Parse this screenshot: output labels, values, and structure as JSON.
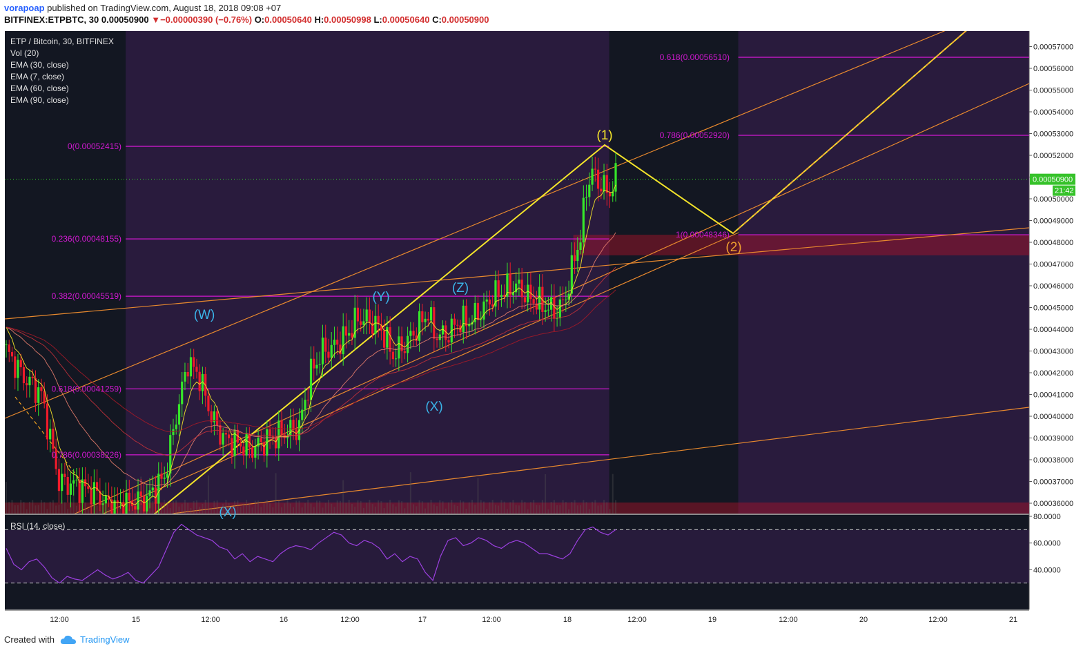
{
  "header": {
    "user": "vorapoap",
    "published": "published on TradingView.com, August 18, 2018 09:08 +07",
    "symbol": "BITFINEX:ETPBTC, 30",
    "last": "0.00050900",
    "change": "−0.00000390 (−0.76%)",
    "o_label": "O:",
    "o": "0.00050640",
    "h_label": "H:",
    "h": "0.00050998",
    "l_label": "L:",
    "l": "0.00050640",
    "c_label": "C:",
    "c": "0.00050900"
  },
  "legend": [
    "ETP / Bitcoin, 30, BITFINEX",
    "Vol (20)",
    "EMA (30, close)",
    "EMA (7, close)",
    "EMA (60, close)",
    "EMA (90, close)"
  ],
  "rsi_label": "RSI (14, close)",
  "footer": {
    "created": "Created with",
    "brand": "TradingView"
  },
  "colors": {
    "up": "#36e62a",
    "down": "#ef1b2b",
    "fib": "#d218d2",
    "wave": "#f5e52a",
    "trend": "#e8892e",
    "rsi": "#9c40e0",
    "bg": "#131722"
  },
  "chart_data": {
    "type": "candlestick",
    "price_axis": {
      "min": 0.00035,
      "max": 0.00058,
      "ticks": [
        "0.00057000",
        "0.00056000",
        "0.00055000",
        "0.00054000",
        "0.00053000",
        "0.00052000",
        "0.00051000",
        "0.00050000",
        "0.00049000",
        "0.00048000",
        "0.00047000",
        "0.00046000",
        "0.00045000",
        "0.00044000",
        "0.00043000",
        "0.00042000",
        "0.00041000",
        "0.00040000",
        "0.00039000",
        "0.00038000",
        "0.00037000",
        "0.00036000"
      ]
    },
    "last_price_label": "0.00050900",
    "countdown_label": "21:42",
    "time_axis": [
      "12:00",
      "15",
      "12:00",
      "16",
      "12:00",
      "17",
      "12:00",
      "18",
      "12:00",
      "19",
      "12:00",
      "20",
      "12:00",
      "21"
    ],
    "fib_levels": [
      {
        "label": "0(0.00052415)",
        "price": 0.00052415
      },
      {
        "label": "0.236(0.00048155)",
        "price": 0.00048155
      },
      {
        "label": "0.382(0.00045519)",
        "price": 0.00045519
      },
      {
        "label": "0.618(0.00041259)",
        "price": 0.00041259
      },
      {
        "label": "0.786(0.00038226)",
        "price": 0.00038226
      },
      {
        "label": "0.618(0.00056510)",
        "price": 0.0005651
      },
      {
        "label": "0.786(0.00052920)",
        "price": 0.0005292
      },
      {
        "label": "1(0.00048346)",
        "price": 0.00048346
      }
    ],
    "wave_labels": [
      "(W)",
      "(X)",
      "(Y)",
      "(X)",
      "(Z)",
      "(1)",
      "(2)"
    ],
    "rsi_axis": {
      "min": 20,
      "max": 80,
      "ticks": [
        "80.0000",
        "60.0000",
        "40.0000"
      ],
      "bands": [
        70,
        30
      ]
    },
    "rsi_values": [
      56,
      44,
      40,
      46,
      48,
      42,
      34,
      30,
      35,
      33,
      32,
      36,
      40,
      36,
      33,
      35,
      38,
      32,
      30,
      36,
      42,
      55,
      68,
      74,
      70,
      66,
      64,
      62,
      57,
      55,
      48,
      52,
      46,
      50,
      48,
      46,
      52,
      56,
      58,
      57,
      55,
      60,
      64,
      68,
      66,
      60,
      58,
      62,
      60,
      56,
      48,
      52,
      46,
      50,
      48,
      38,
      32,
      50,
      62,
      64,
      58,
      60,
      64,
      62,
      58,
      56,
      60,
      62,
      60,
      56,
      52,
      52,
      50,
      48,
      52,
      62,
      70,
      72,
      68,
      66,
      70
    ]
  }
}
